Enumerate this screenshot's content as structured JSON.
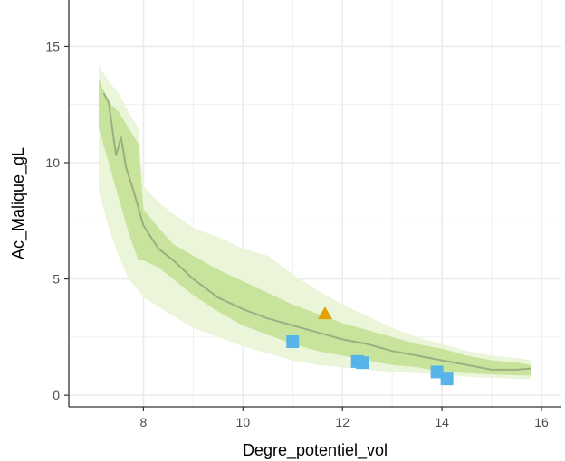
{
  "chart_data": {
    "type": "scatter",
    "title": "",
    "xlabel": "Degre_potentiel_vol",
    "ylabel": "Ac_Malique_gL",
    "xlim": [
      6.5,
      16.4
    ],
    "ylim": [
      -0.5,
      17
    ],
    "xticks": [
      8,
      10,
      12,
      14,
      16
    ],
    "yticks": [
      0,
      5,
      10,
      15
    ],
    "xtick_labels": [
      "8",
      "10",
      "12",
      "14",
      "16"
    ],
    "ytick_labels": [
      "0",
      "5",
      "10",
      "15"
    ],
    "grid": true,
    "legend": "none",
    "colors": {
      "outer_band": "#eaf5d9",
      "inner_band": "#c8e39c",
      "median_line": "#9aaf82",
      "square_points": "#56b4e9",
      "triangle_points": "#e69f00",
      "grid": "#ebebeb",
      "axis": "#333333"
    },
    "bands": {
      "x": [
        7.1,
        7.3,
        7.5,
        7.7,
        7.9,
        8.0,
        8.3,
        8.6,
        9.0,
        9.5,
        10.0,
        10.5,
        11.0,
        11.5,
        12.0,
        12.5,
        13.0,
        13.5,
        14.0,
        14.5,
        15.0,
        15.5,
        15.8
      ],
      "outer_upper": [
        14.2,
        13.5,
        13.0,
        12.2,
        11.5,
        9.0,
        8.3,
        7.8,
        7.2,
        6.8,
        6.3,
        6.0,
        5.2,
        4.5,
        3.9,
        3.4,
        2.9,
        2.5,
        2.2,
        1.9,
        1.7,
        1.6,
        1.5
      ],
      "inner_upper": [
        13.6,
        12.6,
        12.2,
        11.5,
        10.8,
        8.0,
        7.2,
        6.5,
        6.0,
        5.4,
        4.9,
        4.4,
        3.9,
        3.5,
        3.1,
        2.8,
        2.5,
        2.2,
        2.0,
        1.7,
        1.5,
        1.4,
        1.3
      ],
      "inner_lower": [
        11.5,
        10.0,
        8.5,
        7.0,
        5.8,
        5.8,
        5.5,
        5.0,
        4.3,
        3.6,
        3.0,
        2.6,
        2.2,
        1.9,
        1.7,
        1.5,
        1.3,
        1.2,
        1.0,
        0.95,
        0.9,
        0.85,
        0.85
      ],
      "outer_lower": [
        8.8,
        7.2,
        6.0,
        5.0,
        4.5,
        4.2,
        3.8,
        3.4,
        2.9,
        2.5,
        2.1,
        1.8,
        1.5,
        1.3,
        1.2,
        1.1,
        1.0,
        0.95,
        0.9,
        0.8,
        0.75,
        0.7,
        0.7
      ]
    },
    "median_line": {
      "x": [
        7.2,
        7.3,
        7.45,
        7.55,
        7.65,
        7.8,
        8.0,
        8.3,
        8.6,
        9.0,
        9.5,
        10.0,
        10.5,
        11.0,
        11.5,
        12.0,
        12.5,
        13.0,
        13.5,
        14.0,
        14.5,
        15.0,
        15.5,
        15.8
      ],
      "y": [
        13.0,
        12.6,
        10.3,
        11.1,
        9.8,
        8.8,
        7.3,
        6.3,
        5.8,
        5.0,
        4.2,
        3.7,
        3.3,
        3.0,
        2.7,
        2.4,
        2.2,
        1.9,
        1.7,
        1.5,
        1.3,
        1.1,
        1.1,
        1.15
      ]
    },
    "series": [
      {
        "marker": "square",
        "color": "#56b4e9",
        "points": [
          {
            "x": 11.0,
            "y": 2.3
          },
          {
            "x": 12.3,
            "y": 1.45
          },
          {
            "x": 12.4,
            "y": 1.4
          },
          {
            "x": 13.9,
            "y": 1.0
          },
          {
            "x": 14.1,
            "y": 0.7
          }
        ]
      },
      {
        "marker": "triangle",
        "color": "#e69f00",
        "points": [
          {
            "x": 11.65,
            "y": 3.5
          }
        ]
      }
    ]
  }
}
